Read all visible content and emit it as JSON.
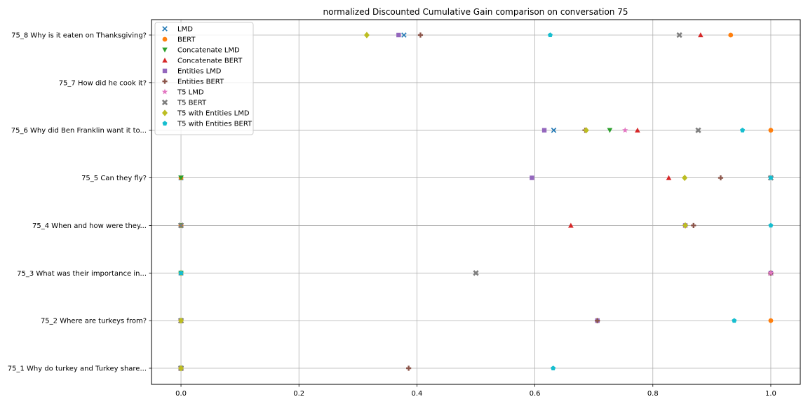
{
  "chart_data": {
    "type": "scatter",
    "title": "normalized Discounted Cumulative Gain comparison on conversation 75",
    "xlabel": "",
    "ylabel": "",
    "xlim": [
      -0.05,
      1.05
    ],
    "xticks": [
      0.0,
      0.2,
      0.4,
      0.6,
      0.8,
      1.0
    ],
    "xtick_labels": [
      "0.0",
      "0.2",
      "0.4",
      "0.6",
      "0.8",
      "1.0"
    ],
    "categories": [
      "75_1 Why do turkey and Turkey share...",
      "75_2 Where are turkeys from?",
      "75_3 What was their importance in...",
      "75_4 When and how were they...",
      "75_5 Can they fly?",
      "75_6 Why did Ben Franklin want it to...",
      "75_7 How did he cook it?",
      "75_8 Why is it eaten on Thanksgiving?"
    ],
    "grid": true,
    "legend_position": "top-left",
    "series": [
      {
        "name": "LMD",
        "marker": "x",
        "color": "#1f77b4",
        "values": [
          0.0,
          0.0,
          0.0,
          0.0,
          0.0,
          0.632,
          null,
          0.378
        ]
      },
      {
        "name": "BERT",
        "marker": "circle",
        "color": "#ff7f0e",
        "values": [
          0.0,
          1.0,
          0.0,
          0.0,
          0.0,
          1.0,
          null,
          0.932
        ]
      },
      {
        "name": "Concatenate LMD",
        "marker": "triangle-down",
        "color": "#2ca02c",
        "values": [
          0.0,
          0.0,
          0.0,
          0.0,
          0.0,
          0.727,
          null,
          null
        ]
      },
      {
        "name": "Concatenate BERT",
        "marker": "triangle-up",
        "color": "#d62728",
        "values": [
          0.0,
          0.0,
          1.0,
          0.661,
          0.827,
          0.774,
          null,
          0.881
        ]
      },
      {
        "name": "Entities LMD",
        "marker": "square",
        "color": "#9467bd",
        "values": [
          0.0,
          0.706,
          1.0,
          0.855,
          0.595,
          0.616,
          null,
          0.369
        ]
      },
      {
        "name": "Entities BERT",
        "marker": "plus",
        "color": "#8c564b",
        "values": [
          0.386,
          0.706,
          1.0,
          0.869,
          0.915,
          0.685,
          null,
          0.406
        ]
      },
      {
        "name": "T5 LMD",
        "marker": "star",
        "color": "#e377c2",
        "values": [
          0.0,
          0.0,
          1.0,
          0.855,
          1.0,
          0.753,
          null,
          null
        ]
      },
      {
        "name": "T5 BERT",
        "marker": "x-thick",
        "color": "#7f7f7f",
        "values": [
          0.0,
          0.0,
          0.5,
          0.0,
          1.0,
          0.877,
          null,
          0.845
        ]
      },
      {
        "name": "T5 with Entities LMD",
        "marker": "diamond",
        "color": "#bcbd22",
        "values": [
          0.0,
          0.0,
          0.0,
          0.855,
          0.854,
          0.687,
          null,
          0.315
        ]
      },
      {
        "name": "T5 with Entities BERT",
        "marker": "pentagon",
        "color": "#17becf",
        "values": [
          0.631,
          0.938,
          0.0,
          1.0,
          1.0,
          0.952,
          null,
          0.626
        ]
      }
    ]
  }
}
